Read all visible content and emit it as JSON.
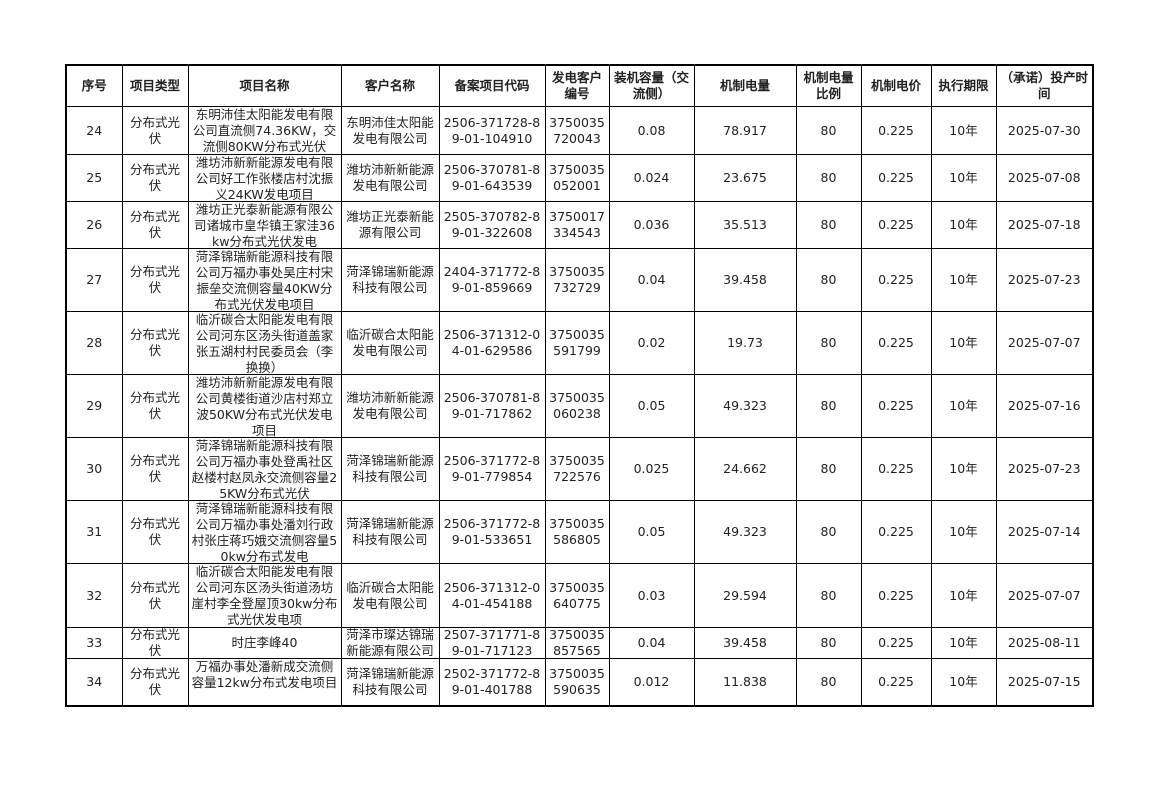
{
  "table": {
    "header": [
      "序号",
      "项目类型",
      "项目名称",
      "客户名称",
      "备案项目代码",
      "发电客户编号",
      "装机容量（交流侧）",
      "机制电量",
      "机制电量比例",
      "机制电价",
      "执行期限",
      "（承诺）投产时间"
    ],
    "rows": [
      [
        "24",
        "分布式光伏",
        "东明沛佳太阳能发电有限公司直流侧74.36KW，交流侧80KW分布式光伏",
        "东明沛佳太阳能发电有限公司",
        "2506-371728-89-01-104910",
        "3750035720043",
        "0.08",
        "78.917",
        "80",
        "0.225",
        "10年",
        "2025-07-30"
      ],
      [
        "25",
        "分布式光伏",
        "潍坊沛新新能源发电有限公司好工作张楼店村沈振义24KW发电项目",
        "潍坊沛新新能源发电有限公司",
        "2506-370781-89-01-643539",
        "3750035052001",
        "0.024",
        "23.675",
        "80",
        "0.225",
        "10年",
        "2025-07-08"
      ],
      [
        "26",
        "分布式光伏",
        "潍坊正光泰新能源有限公司诸城市皇华镇王家洼36kw分布式光伏发电",
        "潍坊正光泰新能源有限公司",
        "2505-370782-89-01-322608",
        "3750017334543",
        "0.036",
        "35.513",
        "80",
        "0.225",
        "10年",
        "2025-07-18"
      ],
      [
        "27",
        "分布式光伏",
        "菏泽锦瑞新能源科技有限公司万福办事处吴庄村宋振垒交流侧容量40KW分布式光伏发电项目",
        "菏泽锦瑞新能源科技有限公司",
        "2404-371772-89-01-859669",
        "3750035732729",
        "0.04",
        "39.458",
        "80",
        "0.225",
        "10年",
        "2025-07-23"
      ],
      [
        "28",
        "分布式光伏",
        "临沂碳合太阳能发电有限公司河东区汤头街道盖家张五湖村村民委员会（李换换）",
        "临沂碳合太阳能发电有限公司",
        "2506-371312-04-01-629586",
        "3750035591799",
        "0.02",
        "19.73",
        "80",
        "0.225",
        "10年",
        "2025-07-07"
      ],
      [
        "29",
        "分布式光伏",
        "潍坊沛新新能源发电有限公司黄楼街道沙店村郑立波50KW分布式光伏发电项目",
        "潍坊沛新新能源发电有限公司",
        "2506-370781-89-01-717862",
        "3750035060238",
        "0.05",
        "49.323",
        "80",
        "0.225",
        "10年",
        "2025-07-16"
      ],
      [
        "30",
        "分布式光伏",
        "菏泽锦瑞新能源科技有限公司万福办事处登禹社区赵楼村赵凤永交流侧容量25KW分布式光伏",
        "菏泽锦瑞新能源科技有限公司",
        "2506-371772-89-01-779854",
        "3750035722576",
        "0.025",
        "24.662",
        "80",
        "0.225",
        "10年",
        "2025-07-23"
      ],
      [
        "31",
        "分布式光伏",
        "菏泽锦瑞新能源科技有限公司万福办事处潘刘行政村张庄蒋巧娥交流侧容量50kw分布式发电",
        "菏泽锦瑞新能源科技有限公司",
        "2506-371772-89-01-533651",
        "3750035586805",
        "0.05",
        "49.323",
        "80",
        "0.225",
        "10年",
        "2025-07-14"
      ],
      [
        "32",
        "分布式光伏",
        "临沂碳合太阳能发电有限公司河东区汤头街道汤坊崖村李全登屋顶30kw分布式光伏发电项",
        "临沂碳合太阳能发电有限公司",
        "2506-371312-04-01-454188",
        "3750035640775",
        "0.03",
        "29.594",
        "80",
        "0.225",
        "10年",
        "2025-07-07"
      ],
      [
        "33",
        "分布式光伏",
        "时庄李峰40",
        "菏泽市璨达锦瑞新能源有限公司",
        "2507-371771-89-01-717123",
        "3750035857565",
        "0.04",
        "39.458",
        "80",
        "0.225",
        "10年",
        "2025-08-11"
      ],
      [
        "34",
        "分布式光伏",
        "万福办事处潘新成交流侧容量12kw分布式发电项目",
        "菏泽锦瑞新能源科技有限公司",
        "2502-371772-89-01-401788",
        "3750035590635",
        "0.012",
        "11.838",
        "80",
        "0.225",
        "10年",
        "2025-07-15"
      ]
    ]
  }
}
